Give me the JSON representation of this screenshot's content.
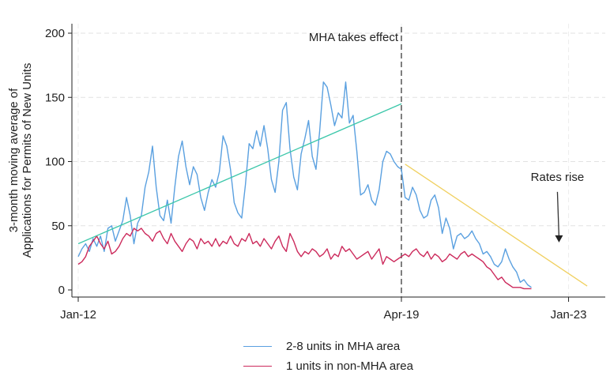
{
  "chart_data": {
    "type": "line",
    "ylabel": "3-month moving average of Applications for Permits of New Units",
    "ylabel_lines": [
      "3-month moving average of",
      "Applications for Permits of New Units"
    ],
    "xlabel": "",
    "ylim": [
      0,
      200
    ],
    "yticks": [
      0,
      50,
      100,
      150,
      200
    ],
    "x_ticks": [
      {
        "label": "Jan-12",
        "x": "2012-01"
      },
      {
        "label": "Apr-19",
        "x": "2019-04"
      },
      {
        "label": "Jan-23",
        "x": "2023-01"
      }
    ],
    "grid": true,
    "legend_position": "bottom",
    "series": [
      {
        "name": "2-8 units in MHA area",
        "color": "#5aa0e0",
        "start": "2012-01",
        "values": [
          26,
          32,
          36,
          30,
          40,
          34,
          42,
          30,
          48,
          50,
          38,
          46,
          54,
          72,
          58,
          36,
          52,
          58,
          80,
          92,
          112,
          80,
          58,
          54,
          70,
          52,
          80,
          104,
          116,
          96,
          82,
          96,
          90,
          72,
          62,
          76,
          86,
          80,
          92,
          120,
          112,
          94,
          68,
          60,
          56,
          82,
          114,
          110,
          124,
          112,
          128,
          110,
          86,
          76,
          100,
          140,
          146,
          110,
          88,
          78,
          106,
          118,
          132,
          104,
          94,
          124,
          162,
          158,
          144,
          128,
          138,
          134,
          162,
          130,
          136,
          108,
          74,
          76,
          82,
          70,
          66,
          78,
          100,
          108,
          106,
          100,
          96,
          94,
          72,
          70,
          80,
          74,
          62,
          56,
          58,
          70,
          74,
          64,
          44,
          56,
          48,
          32,
          42,
          44,
          40,
          42,
          46,
          40,
          36,
          28,
          30,
          26,
          20,
          18,
          22,
          32,
          24,
          18,
          14,
          6,
          8,
          4,
          2
        ]
      },
      {
        "name": "1 units in non-MHA area",
        "color": "#cc2a5c",
        "start": "2012-01",
        "values": [
          20,
          22,
          26,
          34,
          38,
          42,
          36,
          32,
          38,
          28,
          30,
          34,
          40,
          44,
          42,
          48,
          46,
          48,
          44,
          42,
          38,
          44,
          46,
          40,
          36,
          44,
          38,
          34,
          30,
          36,
          40,
          38,
          32,
          40,
          36,
          38,
          34,
          40,
          34,
          38,
          36,
          42,
          36,
          34,
          40,
          38,
          44,
          36,
          38,
          34,
          40,
          36,
          32,
          38,
          42,
          34,
          30,
          44,
          38,
          30,
          26,
          30,
          28,
          32,
          30,
          26,
          28,
          32,
          24,
          28,
          26,
          34,
          30,
          32,
          28,
          24,
          26,
          28,
          30,
          24,
          28,
          32,
          20,
          26,
          24,
          22,
          24,
          26,
          28,
          26,
          30,
          32,
          28,
          26,
          30,
          24,
          28,
          26,
          22,
          24,
          28,
          26,
          24,
          28,
          30,
          26,
          28,
          26,
          24,
          22,
          18,
          16,
          12,
          8,
          10,
          6,
          4,
          2,
          2,
          2,
          1,
          1,
          1
        ]
      },
      {
        "name": "",
        "kind": "trend",
        "color": "#3cc7aa",
        "points": [
          {
            "x": "2012-01",
            "y": 36
          },
          {
            "x": "2019-04",
            "y": 145
          }
        ]
      },
      {
        "name": "",
        "kind": "trend",
        "color": "#f0d060",
        "points": [
          {
            "x": "2019-05",
            "y": 98
          },
          {
            "x": "2023-06",
            "y": 3
          }
        ]
      }
    ],
    "vline": {
      "x": "2019-04",
      "color": "#555555",
      "style": "dashed"
    },
    "annotations": [
      {
        "text": "MHA takes effect",
        "x": "2019-04",
        "y": 194,
        "anchor": "end"
      },
      {
        "text": "Rates rise",
        "x": "2022-10",
        "y": 85,
        "anchor": "middle",
        "arrow_to": {
          "x": "2022-10",
          "y": 37
        }
      }
    ]
  },
  "legend": {
    "items": [
      {
        "label": "2-8 units in MHA area",
        "color": "#5aa0e0"
      },
      {
        "label": "1 units in non-MHA area",
        "color": "#cc2a5c"
      }
    ]
  }
}
